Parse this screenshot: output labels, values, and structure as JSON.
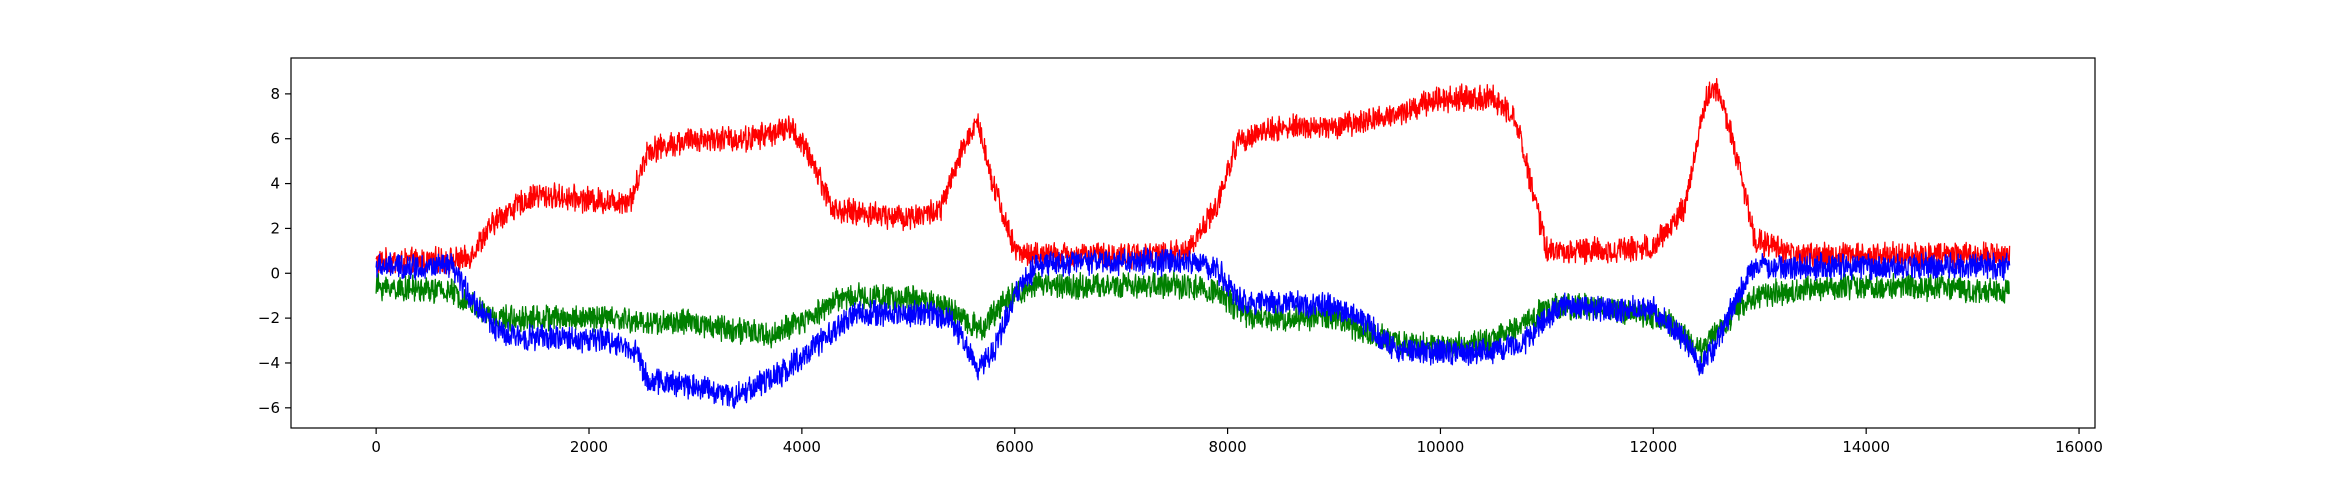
{
  "chart_data": {
    "type": "line",
    "title": "",
    "xlabel": "",
    "ylabel": "",
    "xlim": [
      -800,
      16150
    ],
    "ylim": [
      -6.9,
      9.6
    ],
    "grid": false,
    "legend": "none",
    "x_ticks": [
      0,
      2000,
      4000,
      6000,
      8000,
      10000,
      12000,
      14000,
      16000
    ],
    "y_ticks": [
      -6,
      -4,
      -2,
      0,
      2,
      4,
      6,
      8
    ],
    "x_tick_labels": [
      "0",
      "2000",
      "4000",
      "6000",
      "8000",
      "10000",
      "12000",
      "14000",
      "16000"
    ],
    "y_tick_labels": [
      "−6",
      "−4",
      "−2",
      "0",
      "2",
      "4",
      "6",
      "8"
    ],
    "noise_amplitude": 0.5,
    "series": [
      {
        "color": "#ff0000",
        "x": [
          0,
          850,
          1150,
          1500,
          2200,
          2400,
          2550,
          3000,
          3500,
          3900,
          4100,
          4300,
          5000,
          5300,
          5550,
          5650,
          5800,
          6000,
          6200,
          7000,
          7600,
          7900,
          8100,
          8500,
          9000,
          9500,
          10000,
          10500,
          10700,
          11000,
          11500,
          12000,
          12300,
          12500,
          12600,
          12750,
          12950,
          13300,
          14000,
          15350
        ],
        "y": [
          0.5,
          0.6,
          2.5,
          3.5,
          3.2,
          3.3,
          5.5,
          6.0,
          6.0,
          6.5,
          5.0,
          2.8,
          2.5,
          2.8,
          6.0,
          6.8,
          4.0,
          1.0,
          0.8,
          0.8,
          0.9,
          3.0,
          6.0,
          6.5,
          6.5,
          7.0,
          7.8,
          7.8,
          7.0,
          1.0,
          1.0,
          1.2,
          3.0,
          8.0,
          8.2,
          6.0,
          1.5,
          0.8,
          0.8,
          0.8
        ]
      },
      {
        "color": "#008000",
        "x": [
          0,
          700,
          1100,
          1500,
          2200,
          2500,
          3000,
          3700,
          4000,
          4300,
          4500,
          5200,
          5500,
          5700,
          5900,
          6200,
          7000,
          7500,
          7900,
          8200,
          8800,
          9000,
          9500,
          10000,
          10500,
          11000,
          11500,
          12100,
          12450,
          12800,
          13000,
          13500,
          14500,
          15350
        ],
        "y": [
          -0.6,
          -0.8,
          -2.0,
          -2.0,
          -2.0,
          -2.2,
          -2.2,
          -2.8,
          -2.2,
          -1.2,
          -1.0,
          -1.2,
          -2.0,
          -2.5,
          -1.2,
          -0.5,
          -0.6,
          -0.5,
          -0.8,
          -2.0,
          -2.0,
          -2.0,
          -3.0,
          -3.3,
          -3.0,
          -1.5,
          -1.5,
          -2.0,
          -3.5,
          -1.5,
          -1.0,
          -0.6,
          -0.6,
          -0.8
        ]
      },
      {
        "color": "#0000ff",
        "x": [
          0,
          700,
          950,
          1200,
          2200,
          2450,
          2550,
          3000,
          3350,
          3800,
          4200,
          4500,
          5200,
          5400,
          5650,
          5800,
          6000,
          6200,
          7000,
          7700,
          7900,
          8100,
          8500,
          9000,
          9300,
          9600,
          10000,
          10500,
          10800,
          11100,
          11500,
          12000,
          12300,
          12450,
          12600,
          12800,
          12950,
          13300,
          14000,
          15350
        ],
        "y": [
          0.3,
          0.3,
          -1.5,
          -2.8,
          -3.0,
          -3.5,
          -4.8,
          -5.0,
          -5.5,
          -4.5,
          -3.0,
          -1.8,
          -1.8,
          -2.0,
          -4.2,
          -3.5,
          -1.0,
          0.4,
          0.5,
          0.5,
          0.2,
          -1.2,
          -1.3,
          -1.5,
          -2.2,
          -3.5,
          -3.5,
          -3.5,
          -3.0,
          -1.5,
          -1.6,
          -1.6,
          -3.0,
          -4.3,
          -3.0,
          -1.0,
          0.4,
          0.3,
          0.3,
          0.3
        ]
      }
    ]
  }
}
